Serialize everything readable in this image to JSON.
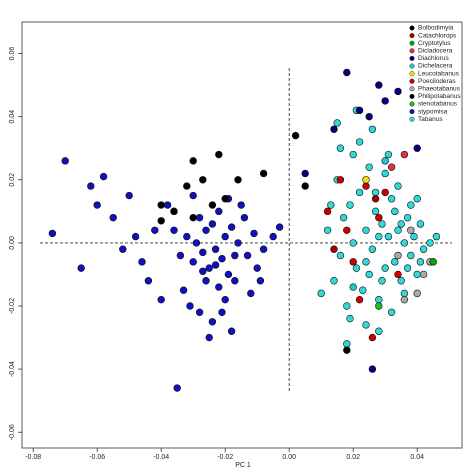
{
  "chart_data": {
    "type": "scatter",
    "xlabel": "PC 1",
    "xlim": [
      -0.0835,
      0.054
    ],
    "ylim": [
      -0.065,
      0.07
    ],
    "xticks": [
      -0.08,
      -0.06,
      -0.04,
      -0.02,
      {
        "value": 0,
        "label": "0.00"
      },
      0.02,
      0.04
    ],
    "yticks": [
      -0.06,
      -0.04,
      -0.02,
      {
        "value": 0,
        "label": "0.00"
      },
      0.02,
      0.04,
      0.06
    ],
    "reference_lines": {
      "x": 0,
      "y": 0
    },
    "legend": "top-right",
    "series": [
      {
        "name": "Bolbodimyia",
        "color": "#000000",
        "x": [
          0.002,
          0.018,
          0.005
        ],
        "values": [
          0.034,
          -0.034,
          0.018
        ]
      },
      {
        "name": "Catachlorops",
        "color": "#a00000",
        "x": [
          0.014,
          0.027
        ],
        "values": [
          -0.002,
          0.014
        ]
      },
      {
        "name": "Cryptotylus",
        "color": "#00aa00",
        "x": [
          0.045
        ],
        "values": [
          -0.006
        ]
      },
      {
        "name": "Dicladocera",
        "color": "#e03040",
        "x": [
          0.032,
          0.036
        ],
        "values": [
          0.024,
          0.028
        ]
      },
      {
        "name": "Diachlorus",
        "color": "#000080",
        "x": [
          0.018,
          0.025,
          0.028,
          0.03,
          0.034,
          0.014,
          0.022,
          0.005,
          0.04,
          0.026
        ],
        "values": [
          0.054,
          0.04,
          0.05,
          0.045,
          0.048,
          0.036,
          0.042,
          0.022,
          0.03,
          -0.04
        ]
      },
      {
        "name": "Dichelacera",
        "color": "#20c8c8",
        "x": [
          0.03,
          0.02
        ],
        "values": [
          0.026,
          -0.014
        ]
      },
      {
        "name": "Leucotabanus",
        "color": "#f0e000",
        "x": [
          0.024
        ],
        "values": [
          0.02
        ]
      },
      {
        "name": "Poeciloderas",
        "color": "#cc0000",
        "x": [
          0.012,
          0.016,
          0.02,
          0.024,
          0.026,
          0.028,
          0.03,
          0.034,
          0.018,
          0.022
        ],
        "values": [
          0.01,
          0.02,
          -0.006,
          0.018,
          -0.03,
          0.008,
          0.016,
          -0.01,
          0.004,
          -0.018
        ]
      },
      {
        "name": "Phaeotabanus",
        "color": "#aaaaaa",
        "x": [
          0.038,
          0.042,
          0.04,
          0.044,
          0.036,
          0.034
        ],
        "values": [
          0.004,
          -0.01,
          -0.016,
          -0.006,
          -0.018,
          -0.004
        ]
      },
      {
        "name": "Philipotabanus",
        "color": "#000000",
        "x": [
          -0.04,
          -0.036,
          -0.032,
          -0.03,
          -0.027,
          -0.024,
          -0.022,
          -0.02,
          -0.016,
          -0.008,
          -0.04,
          -0.03
        ],
        "values": [
          0.012,
          0.01,
          0.018,
          0.026,
          0.02,
          0.012,
          0.028,
          0.014,
          0.02,
          0.022,
          0.007,
          0.008
        ]
      },
      {
        "name": "stenotabanus",
        "color": "#22bb22",
        "x": [
          0.028
        ],
        "values": [
          -0.02
        ]
      },
      {
        "name": "stypomisa",
        "color": "#1010c0",
        "x": [
          -0.074,
          -0.07,
          -0.065,
          -0.062,
          -0.06,
          -0.058,
          -0.055,
          -0.052,
          -0.05,
          -0.048,
          -0.046,
          -0.044,
          -0.042,
          -0.04,
          -0.038,
          -0.036,
          -0.035,
          -0.034,
          -0.032,
          -0.03,
          -0.029,
          -0.028,
          -0.027,
          -0.026,
          -0.025,
          -0.024,
          -0.023,
          -0.022,
          -0.021,
          -0.02,
          -0.019,
          -0.018,
          -0.017,
          -0.016,
          -0.014,
          -0.012,
          -0.01,
          -0.008,
          -0.005,
          -0.003,
          -0.036,
          -0.033,
          -0.03,
          -0.028,
          -0.026,
          -0.024,
          -0.022,
          -0.02,
          -0.018,
          -0.015,
          -0.031,
          -0.027,
          -0.025,
          -0.023,
          -0.021,
          -0.019,
          -0.017,
          -0.013,
          -0.011,
          -0.009
        ],
        "values": [
          0.003,
          0.026,
          -0.008,
          0.018,
          0.012,
          0.021,
          0.008,
          -0.002,
          0.015,
          0.002,
          -0.006,
          -0.012,
          0.004,
          -0.018,
          0.012,
          0.004,
          -0.046,
          -0.004,
          0.002,
          -0.006,
          0.0,
          -0.022,
          -0.003,
          -0.012,
          -0.008,
          -0.025,
          -0.002,
          -0.014,
          -0.005,
          0.002,
          -0.01,
          -0.028,
          -0.004,
          0.0,
          0.008,
          -0.016,
          -0.008,
          -0.002,
          0.002,
          0.005,
          0.01,
          -0.015,
          0.015,
          0.008,
          0.004,
          0.006,
          0.01,
          -0.018,
          0.005,
          0.012,
          -0.02,
          -0.009,
          -0.03,
          -0.007,
          -0.022,
          0.014,
          -0.012,
          -0.004,
          0.003,
          -0.012
        ]
      },
      {
        "name": "Tabanus",
        "color": "#30d8d8",
        "x": [
          0.012,
          0.014,
          0.015,
          0.016,
          0.017,
          0.018,
          0.019,
          0.02,
          0.021,
          0.022,
          0.023,
          0.024,
          0.025,
          0.026,
          0.027,
          0.028,
          0.029,
          0.03,
          0.031,
          0.032,
          0.033,
          0.034,
          0.035,
          0.036,
          0.037,
          0.038,
          0.039,
          0.04,
          0.041,
          0.042,
          0.02,
          0.022,
          0.024,
          0.026,
          0.028,
          0.03,
          0.032,
          0.034,
          0.036,
          0.038,
          0.01,
          0.013,
          0.016,
          0.019,
          0.025,
          0.028,
          0.031,
          0.035,
          0.04,
          0.044,
          0.015,
          0.018,
          0.021,
          0.024,
          0.027,
          0.029,
          0.033,
          0.037,
          0.041,
          0.046
        ],
        "values": [
          0.004,
          -0.012,
          0.02,
          -0.004,
          0.008,
          -0.02,
          0.012,
          0.0,
          -0.008,
          0.016,
          -0.015,
          0.004,
          0.024,
          -0.002,
          0.01,
          -0.018,
          0.006,
          -0.008,
          0.002,
          0.014,
          -0.006,
          0.004,
          -0.012,
          0.0,
          0.008,
          -0.004,
          0.002,
          -0.01,
          0.006,
          -0.002,
          0.028,
          0.032,
          -0.026,
          0.036,
          -0.028,
          0.022,
          -0.022,
          0.018,
          -0.016,
          0.012,
          -0.016,
          0.012,
          0.03,
          -0.024,
          -0.01,
          0.002,
          0.028,
          0.006,
          0.014,
          0.0,
          0.038,
          -0.032,
          0.042,
          -0.006,
          0.016,
          -0.012,
          0.01,
          -0.008,
          -0.006,
          0.002
        ]
      }
    ]
  }
}
